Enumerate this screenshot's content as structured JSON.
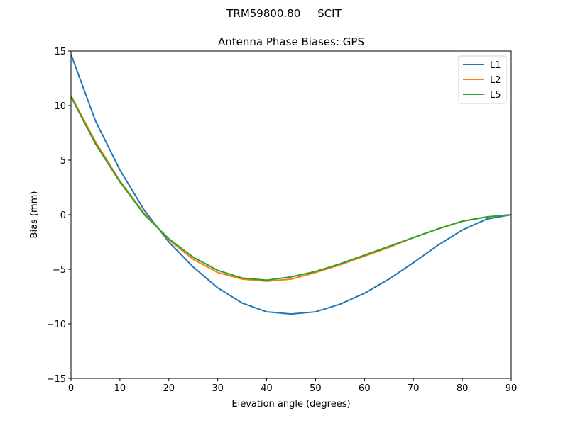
{
  "chart_data": {
    "type": "line",
    "suptitle": "TRM59800.80     SCIT",
    "title": "Antenna Phase Biases: GPS",
    "xlabel": "Elevation angle (degrees)",
    "ylabel": "Bias (mm)",
    "xlim": [
      0,
      90
    ],
    "ylim": [
      -15,
      15
    ],
    "xticks": [
      0,
      10,
      20,
      30,
      40,
      50,
      60,
      70,
      80,
      90
    ],
    "yticks": [
      -15,
      -10,
      -5,
      0,
      5,
      10,
      15
    ],
    "ytick_labels": [
      "−15",
      "−10",
      "−5",
      "0",
      "5",
      "10",
      "15"
    ],
    "grid": false,
    "legend_position": "top-right",
    "x": [
      0,
      5,
      10,
      15,
      20,
      25,
      30,
      35,
      40,
      45,
      50,
      55,
      60,
      65,
      70,
      75,
      80,
      85,
      90
    ],
    "series": [
      {
        "name": "L1",
        "color": "#1f77b4",
        "values": [
          14.7,
          8.6,
          4.1,
          0.4,
          -2.5,
          -4.8,
          -6.7,
          -8.1,
          -8.9,
          -9.1,
          -8.9,
          -8.2,
          -7.2,
          -5.9,
          -4.4,
          -2.8,
          -1.4,
          -0.4,
          0
        ]
      },
      {
        "name": "L2",
        "color": "#ff7f0e",
        "values": [
          10.9,
          6.7,
          3.1,
          0.1,
          -2.3,
          -4.1,
          -5.3,
          -5.9,
          -6.1,
          -5.9,
          -5.3,
          -4.6,
          -3.8,
          -3.0,
          -2.1,
          -1.3,
          -0.6,
          -0.2,
          0
        ]
      },
      {
        "name": "L5",
        "color": "#2ca02c",
        "values": [
          10.8,
          6.5,
          3.0,
          0.0,
          -2.2,
          -3.9,
          -5.1,
          -5.8,
          -6.0,
          -5.7,
          -5.2,
          -4.5,
          -3.7,
          -2.9,
          -2.1,
          -1.3,
          -0.6,
          -0.2,
          0
        ]
      }
    ]
  }
}
